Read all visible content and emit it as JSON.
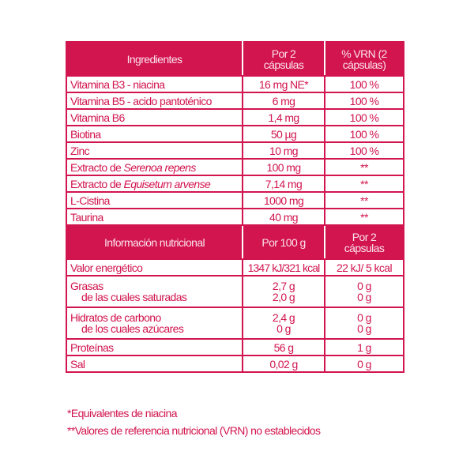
{
  "ingredients": {
    "headers": [
      "Ingredientes",
      "Por 2 cápsulas",
      "% VRN (2 cápsulas)"
    ],
    "rows": [
      {
        "name": "Vitamina B3 - niacina",
        "italic": "",
        "amount": "16 mg NE*",
        "vrn": "100 %"
      },
      {
        "name": "Vitamina B5 - acido pantoténico",
        "italic": "",
        "amount": "6 mg",
        "vrn": "100 %"
      },
      {
        "name": "Vitamina B6",
        "italic": "",
        "amount": "1,4 mg",
        "vrn": "100 %"
      },
      {
        "name": "Biotina",
        "italic": "",
        "amount": "50 µg",
        "vrn": "100 %"
      },
      {
        "name": "Zinc",
        "italic": "",
        "amount": "10 mg",
        "vrn": "100 %"
      },
      {
        "name": "Extracto de ",
        "italic": "Serenoa repens",
        "amount": "100 mg",
        "vrn": "**"
      },
      {
        "name": "Extracto de ",
        "italic": "Equisetum arvense",
        "amount": "7,14 mg",
        "vrn": "**"
      },
      {
        "name": "L-Cistina",
        "italic": "",
        "amount": "1000 mg",
        "vrn": "**"
      },
      {
        "name": "Taurina",
        "italic": "",
        "amount": "40 mg",
        "vrn": "**"
      }
    ]
  },
  "nutrition": {
    "headers": [
      "Información nutricional",
      "Por 100 g",
      "Por 2 cápsulas"
    ],
    "valor": {
      "name": "Valor energético",
      "per100": "1347 kJ/321 kcal",
      "per2": "22 kJ/ 5 kcal"
    },
    "grasas": {
      "name": "Grasas",
      "sub": "de las cuales saturadas",
      "per100": "2,7 g",
      "per100_sub": "2,0 g",
      "per2": "0 g",
      "per2_sub": "0 g"
    },
    "hidratos": {
      "name": "Hidratos de carbono",
      "sub": "de los cuales azúcares",
      "per100": "2,4 g",
      "per100_sub": "0 g",
      "per2": "0 g",
      "per2_sub": "0 g"
    },
    "proteinas": {
      "name": "Proteínas",
      "per100": "56 g",
      "per2": "1 g"
    },
    "sal": {
      "name": "Sal",
      "per100": "0,02 g",
      "per2": "0 g"
    }
  },
  "footnotes": [
    "*Equivalentes de niacina",
    "**Valores de referencia nutricional (VRN) no establecidos"
  ],
  "colors": {
    "accent": "#d2144f"
  }
}
